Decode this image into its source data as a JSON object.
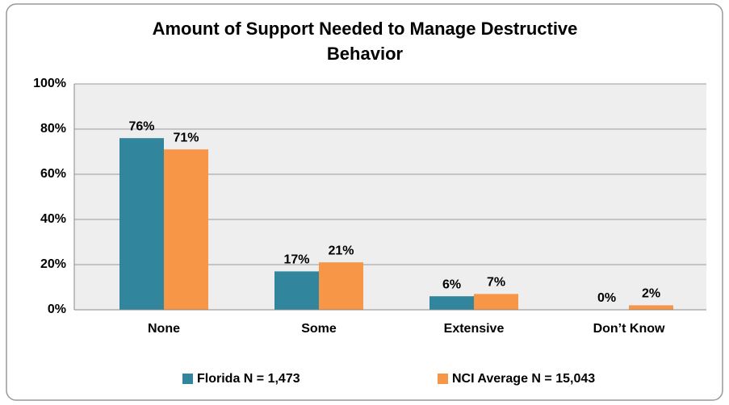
{
  "chart_data": {
    "type": "bar",
    "title": "Amount of Support Needed to Manage Destructive Behavior",
    "categories": [
      "None",
      "Some",
      "Extensive",
      "Don’t Know"
    ],
    "series": [
      {
        "name": "Florida N = 1,473",
        "color": "#31859c",
        "values": [
          76,
          17,
          6,
          0
        ],
        "value_labels": [
          "76%",
          "17%",
          "6%",
          "0%"
        ]
      },
      {
        "name": "NCI Average N = 15,043",
        "color": "#f79646",
        "values": [
          71,
          21,
          7,
          2
        ],
        "value_labels": [
          "71%",
          "21%",
          "7%",
          "2%"
        ]
      }
    ],
    "ylim": [
      0,
      100
    ],
    "yticks": [
      {
        "value": 0,
        "label": "0%"
      },
      {
        "value": 20,
        "label": "20%"
      },
      {
        "value": 40,
        "label": "40%"
      },
      {
        "value": 60,
        "label": "60%"
      },
      {
        "value": 80,
        "label": "80%"
      },
      {
        "value": 100,
        "label": "100%"
      }
    ],
    "grid": true,
    "legend": "bottom"
  }
}
